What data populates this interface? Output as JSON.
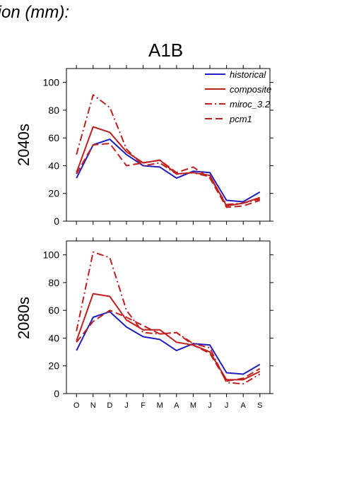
{
  "header": {
    "title": "tion (mm):",
    "scenario": "A1B"
  },
  "colors": {
    "historical": "#1f1fbf",
    "model": "#c01f1f",
    "axis": "#000000",
    "background": "#ffffff"
  },
  "chart_data": [
    {
      "type": "line",
      "panel_label": "2040s",
      "categories": [
        "O",
        "N",
        "D",
        "J",
        "F",
        "M",
        "A",
        "M",
        "J",
        "J",
        "A",
        "S"
      ],
      "ylim": [
        0,
        110
      ],
      "yticks": [
        0,
        20,
        40,
        60,
        80,
        100
      ],
      "legend": {
        "placement": "top-right"
      },
      "series": [
        {
          "name": "historical",
          "style": "solid",
          "color": "#1f1fbf",
          "values": [
            31,
            55,
            59,
            48,
            40,
            39,
            31,
            36,
            35,
            15,
            14,
            21
          ]
        },
        {
          "name": "composite",
          "style": "solid",
          "color": "#c01f1f",
          "values": [
            35,
            68,
            64,
            50,
            42,
            44,
            34,
            35,
            33,
            11,
            13,
            17
          ]
        },
        {
          "name": "miroc_3.2",
          "style": "dashdot",
          "color": "#c01f1f",
          "values": [
            48,
            91,
            82,
            52,
            40,
            42,
            34,
            35,
            32,
            12,
            13,
            16
          ]
        },
        {
          "name": "pcm1",
          "style": "dashed",
          "color": "#c01f1f",
          "values": [
            34,
            55,
            56,
            40,
            42,
            44,
            35,
            39,
            31,
            10,
            11,
            15
          ]
        }
      ]
    },
    {
      "type": "line",
      "panel_label": "2080s",
      "categories": [
        "O",
        "N",
        "D",
        "J",
        "F",
        "M",
        "A",
        "M",
        "J",
        "J",
        "A",
        "S"
      ],
      "ylim": [
        0,
        110
      ],
      "yticks": [
        0,
        20,
        40,
        60,
        80,
        100
      ],
      "series": [
        {
          "name": "historical",
          "style": "solid",
          "color": "#1f1fbf",
          "values": [
            31,
            55,
            59,
            48,
            41,
            39,
            31,
            36,
            35,
            15,
            14,
            21
          ]
        },
        {
          "name": "composite",
          "style": "solid",
          "color": "#c01f1f",
          "values": [
            38,
            72,
            70,
            53,
            46,
            46,
            37,
            35,
            30,
            10,
            10,
            16
          ]
        },
        {
          "name": "miroc_3.2",
          "style": "dashdot",
          "color": "#c01f1f",
          "values": [
            45,
            102,
            98,
            60,
            44,
            43,
            44,
            36,
            33,
            8,
            7,
            14
          ]
        },
        {
          "name": "pcm1",
          "style": "dashed",
          "color": "#c01f1f",
          "values": [
            37,
            52,
            60,
            55,
            49,
            43,
            44,
            35,
            29,
            9,
            11,
            18
          ]
        }
      ]
    }
  ]
}
